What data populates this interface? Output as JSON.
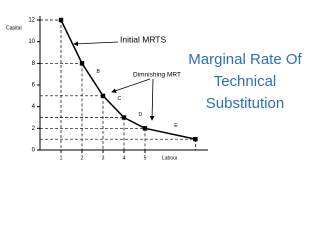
{
  "chart_data": {
    "type": "line",
    "title": "Marginal Rate Of Technical Substitution",
    "title_lines": [
      "Marginal Rate Of",
      "Technical",
      "Substitution"
    ],
    "title_color": "#2e6fb8",
    "x_label": "Labour",
    "y_label": "Capital",
    "x": [
      1,
      2,
      3,
      4,
      5,
      7.4
    ],
    "series": [
      {
        "color": "#000000",
        "values": [
          12,
          8,
          5,
          3,
          2,
          1
        ]
      }
    ],
    "xlim": [
      0,
      8
    ],
    "ylim": [
      0,
      12
    ],
    "xticks": [
      1,
      2,
      3,
      4,
      5
    ],
    "yticks": [
      0,
      2,
      4,
      6,
      8,
      10,
      12
    ],
    "segment_labels": [
      "B",
      "C",
      "D",
      "E"
    ],
    "annotations": [
      "Initial MRTS",
      "Dimnishing MRT"
    ]
  }
}
